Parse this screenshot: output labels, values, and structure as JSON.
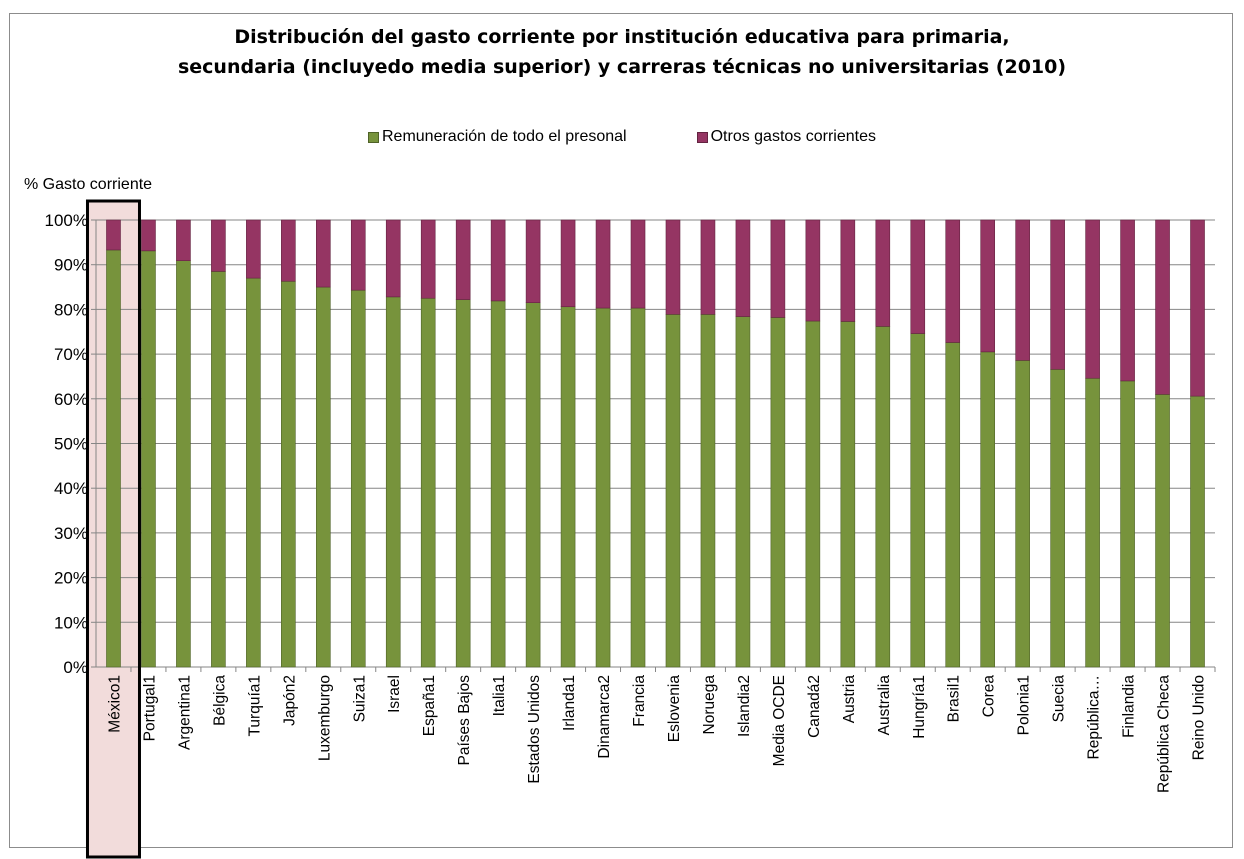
{
  "chart_data": {
    "type": "bar",
    "stacked": true,
    "title_line1": "Distribución del gasto corriente por institución educativa para primaria,",
    "title_line2": "secundaria (incluyedo media superior)  y carreras técnicas no universitarias (2010)",
    "ylabel": "% Gasto corriente",
    "ylim": [
      0,
      100
    ],
    "yticks": [
      "0%",
      "10%",
      "20%",
      "30%",
      "40%",
      "50%",
      "60%",
      "70%",
      "80%",
      "90%",
      "100%"
    ],
    "grid": true,
    "legend_position": "top",
    "highlighted_category": "México1",
    "categories": [
      "México1",
      "Portugal1",
      "Argentina1",
      "Bélgica",
      "Turquía1",
      "Japón2",
      "Luxemburgo",
      "Suiza1",
      "Israel",
      "España1",
      "Países Bajos",
      "Italia1",
      "Estados Unidos",
      "Irlanda1",
      "Dinamarca2",
      "Francia",
      "Eslovenia",
      "Noruega",
      "Islandia2",
      "Media OCDE",
      "Canadá2",
      "Austria",
      "Australia",
      "Hungría1",
      "Brasil1",
      "Corea",
      "Polonia1",
      "Suecia",
      "República…",
      "Finlandia",
      "República Checa",
      "Reino Unido"
    ],
    "series": [
      {
        "name": "Remuneración de todo el presonal",
        "color": "#77933c",
        "values": [
          93.3,
          93.1,
          90.9,
          88.5,
          87.0,
          86.3,
          85.0,
          84.3,
          82.8,
          82.5,
          82.2,
          81.9,
          81.5,
          80.6,
          80.3,
          80.3,
          78.9,
          78.9,
          78.4,
          78.2,
          77.4,
          77.3,
          76.2,
          74.6,
          72.6,
          70.5,
          68.6,
          66.6,
          64.6,
          64.0,
          61.0,
          60.6
        ]
      },
      {
        "name": "Otros gastos corrientes",
        "color": "#953563",
        "values": [
          6.7,
          6.9,
          9.1,
          11.5,
          13.0,
          13.7,
          15.0,
          15.7,
          17.2,
          17.5,
          17.8,
          18.1,
          18.5,
          19.4,
          19.7,
          19.7,
          21.1,
          21.1,
          21.6,
          21.8,
          22.6,
          22.7,
          23.8,
          25.4,
          27.4,
          29.5,
          31.4,
          33.4,
          35.4,
          36.0,
          39.0,
          39.4
        ]
      }
    ]
  }
}
